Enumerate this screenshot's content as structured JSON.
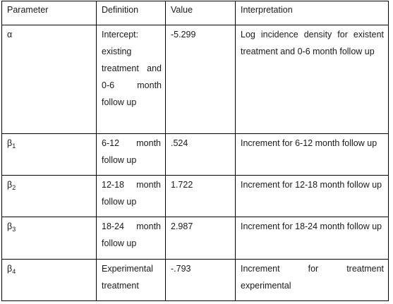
{
  "headers": [
    "Parameter",
    "Definition",
    "Value",
    "Interpretation"
  ],
  "rows": [
    {
      "param": "α",
      "param_sub": "",
      "definition": "Intercept: existing treatment and 0-6 month follow up",
      "value": "-5.299",
      "interpretation": "Log incidence density for existent treatment and 0-6 month follow up"
    },
    {
      "param": "β",
      "param_sub": "1",
      "definition": "6-12 month follow up",
      "value": ".524",
      "interpretation": "Increment for 6-12 month follow up"
    },
    {
      "param": "β",
      "param_sub": "2",
      "definition": "12-18 month follow up",
      "value": "1.722",
      "interpretation": "Increment for 12-18 month follow up"
    },
    {
      "param": "β",
      "param_sub": "3",
      "definition": "18-24 month follow up",
      "value": "2.987",
      "interpretation": "Increment for 18-24 month follow up"
    },
    {
      "param": "β",
      "param_sub": "4",
      "definition": "Experimental treatment",
      "value": "-.793",
      "interpretation": "Increment for treatment experimental"
    }
  ]
}
